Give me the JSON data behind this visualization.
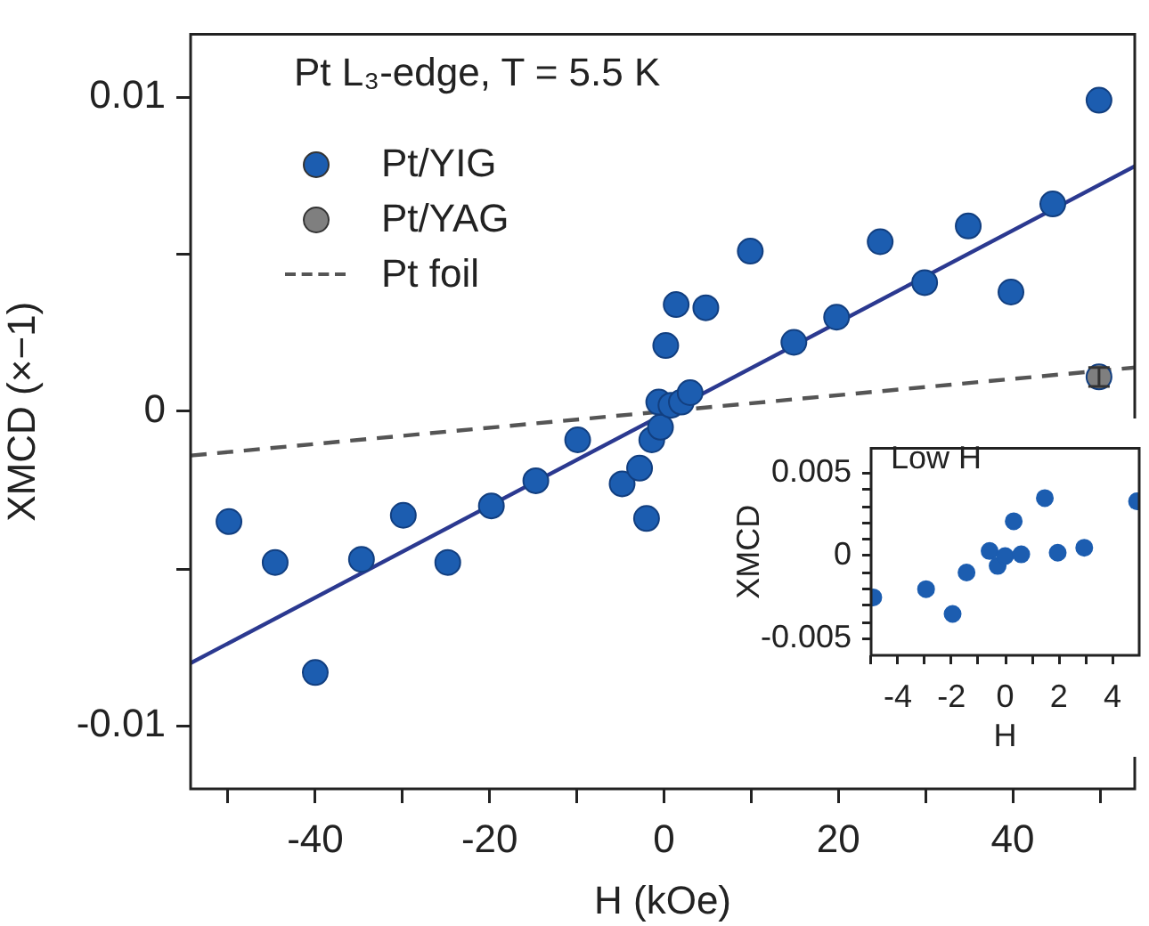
{
  "chart_data": [
    {
      "type": "scatter",
      "xlabel": "H (kOe)",
      "ylabel": "XMCD (×−1)",
      "annotations": [
        "Pt L₃-edge, T = 5.5 K"
      ],
      "legend": "top left",
      "marker": "circle",
      "grid": false,
      "xlim": [
        -54.3,
        54
      ],
      "ylim": [
        -0.012,
        0.012
      ],
      "xticks": [
        {
          "value": -50,
          "label": null
        },
        -40,
        {
          "value": -30,
          "label": null
        },
        -20,
        {
          "value": -10,
          "label": null
        },
        0,
        {
          "value": 10,
          "label": null
        },
        20,
        {
          "value": 30,
          "label": null
        },
        40,
        {
          "value": 50,
          "label": null
        }
      ],
      "yticks": [
        -0.01,
        {
          "value": -0.005,
          "label": null
        },
        0,
        {
          "value": 0.005,
          "label": null
        },
        0.01
      ],
      "series": [
        {
          "name": "Pt/YIG",
          "color": "#1c5db0",
          "x": [
            -49.9,
            -44.6,
            -40,
            -34.7,
            -29.9,
            -24.8,
            -19.8,
            -14.7,
            -9.9,
            -4.8,
            -2.8,
            -2,
            -1.4,
            -0.4,
            -0.6,
            0.2,
            1.4,
            0.8,
            2,
            3,
            4.8,
            9.9,
            14.9,
            19.8,
            24.8,
            29.9,
            34.9,
            39.8,
            44.6,
            49.9
          ],
          "values": [
            -0.0035,
            -0.0048,
            -0.0083,
            -0.0047,
            -0.0033,
            -0.0048,
            -0.003,
            -0.0022,
            -0.0009,
            -0.0023,
            -0.0018,
            -0.0034,
            -0.0009,
            -0.0005,
            0.0003,
            0.0021,
            0.0034,
            0.0002,
            0.0003,
            0.0006,
            0.0033,
            0.0051,
            0.0022,
            0.003,
            0.0054,
            0.0041,
            0.0059,
            0.0038,
            0.0066,
            0.0099
          ]
        },
        {
          "name": "Pt/YAG",
          "color": "#7f7f7f",
          "x": [
            49.9
          ],
          "values": [
            0.0011
          ],
          "errors": [
            0.0003
          ]
        },
        {
          "name": "Pt foil",
          "type": "line",
          "line_style": "dashed",
          "marker": "none",
          "color": "#555555",
          "x": [
            -54.3,
            54
          ],
          "values": [
            -0.0014,
            0.0014
          ]
        },
        {
          "type": "line",
          "line_style": "solid",
          "marker": "none",
          "color": "#2b3990",
          "x": [
            -54.3,
            54
          ],
          "values": [
            -0.008,
            0.0078
          ]
        }
      ]
    },
    {
      "type": "scatter",
      "xlabel": "H",
      "ylabel": "XMCD",
      "annotations": [
        "Low H"
      ],
      "marker": "circle",
      "grid": false,
      "xlim": [
        -5,
        5
      ],
      "ylim": [
        -0.006,
        0.0065
      ],
      "xticks": [
        {
          "value": -5,
          "label": null
        },
        -4,
        {
          "value": -3,
          "label": null
        },
        -2,
        {
          "value": -1,
          "label": null
        },
        0,
        {
          "value": 1,
          "label": null
        },
        2,
        {
          "value": 3,
          "label": null
        },
        4
      ],
      "yticks": [
        -0.005,
        {
          "value": -0.004,
          "label": null
        },
        {
          "value": -0.003,
          "label": null
        },
        {
          "value": -0.002,
          "label": null
        },
        {
          "value": -0.001,
          "label": null
        },
        0,
        {
          "value": 0.001,
          "label": null
        },
        {
          "value": 0.002,
          "label": null
        },
        {
          "value": 0.003,
          "label": null
        },
        {
          "value": 0.004,
          "label": null
        },
        0.005
      ],
      "color": "#1c5db0",
      "x": [
        -4.92,
        -2.95,
        -1.96,
        -1.44,
        -0.58,
        -0.28,
        0,
        0.32,
        0.6,
        1.48,
        1.96,
        2.95,
        4.92
      ],
      "values": [
        -0.0025,
        -0.002,
        -0.0035,
        -0.001,
        0.0003,
        -0.0006,
        0,
        0.0021,
        0.0001,
        0.0035,
        0.0002,
        0.0005,
        0.0033
      ]
    }
  ]
}
